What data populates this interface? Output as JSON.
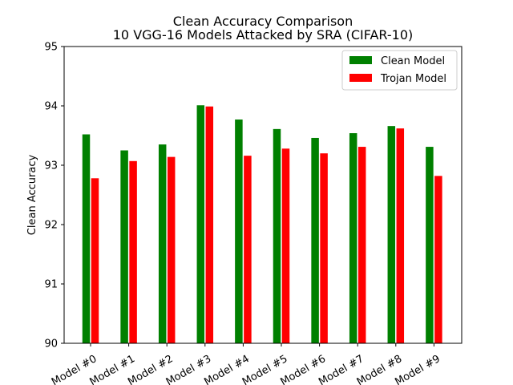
{
  "chart_data": {
    "type": "bar",
    "title": "Clean Accuracy Comparison",
    "subtitle": "10 VGG-16 Models Attacked by SRA (CIFAR-10)",
    "xlabel": "",
    "ylabel": "Clean Accuracy",
    "ylim": [
      90,
      95
    ],
    "yticks": [
      "90",
      "91",
      "92",
      "93",
      "94",
      "95"
    ],
    "categories": [
      "Model #0",
      "Model #1",
      "Model #2",
      "Model #3",
      "Model #4",
      "Model #5",
      "Model #6",
      "Model #7",
      "Model #8",
      "Model #9"
    ],
    "series": [
      {
        "name": "Clean Model",
        "color": "#008000",
        "values": [
          93.52,
          93.25,
          93.35,
          94.01,
          93.77,
          93.61,
          93.46,
          93.54,
          93.66,
          93.31
        ]
      },
      {
        "name": "Trojan Model",
        "color": "#ff0000",
        "values": [
          92.78,
          93.07,
          93.14,
          93.99,
          93.16,
          93.28,
          93.2,
          93.31,
          93.62,
          92.82
        ]
      }
    ],
    "legend_position": "top-right",
    "grid": false
  }
}
